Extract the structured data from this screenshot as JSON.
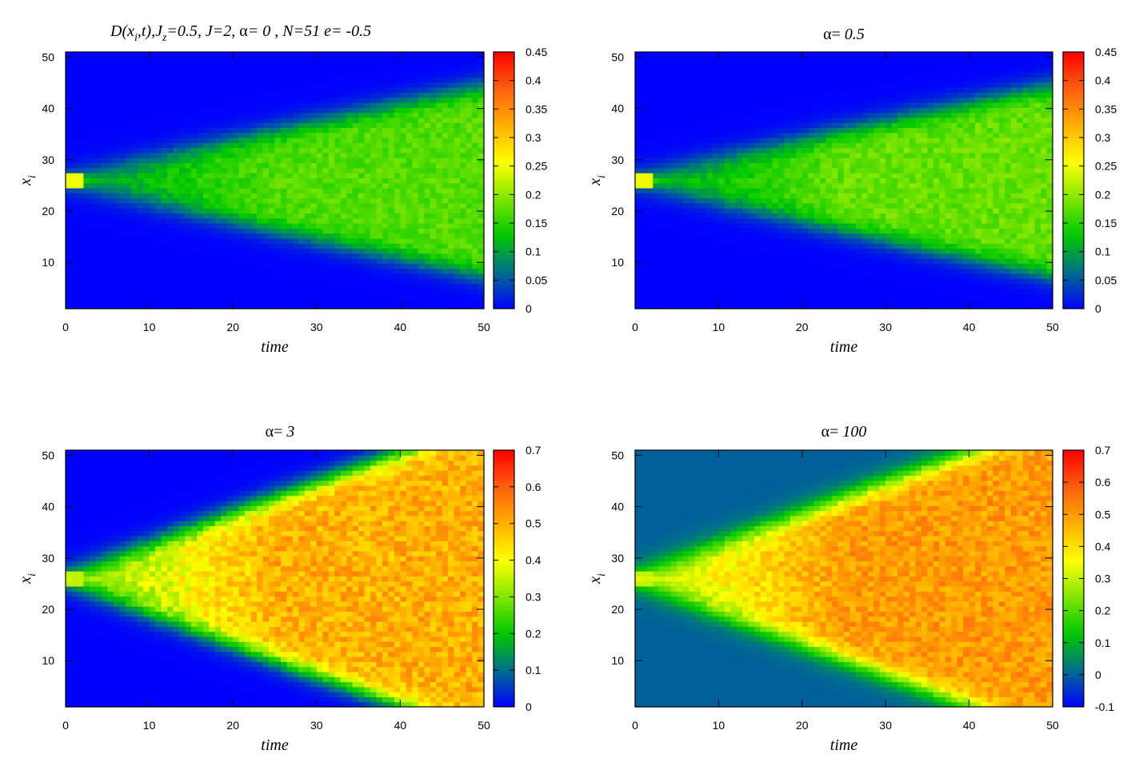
{
  "chart_data": [
    {
      "type": "heatmap",
      "title_parts": {
        "lead": "D(x",
        "sub_i": "i",
        "mid1": ",t),J",
        "sub_z": "z",
        "mid2": "=0.5,  J=2, ",
        "alpha": "α",
        "tail": "= 0 , N=51 e= -0.5"
      },
      "xlabel": "time",
      "ylabel_main": "x",
      "ylabel_sub": "i",
      "xlim": [
        0,
        50
      ],
      "ylim": [
        1,
        51
      ],
      "x_ticks": [
        "0",
        "10",
        "20",
        "30",
        "40",
        "50"
      ],
      "y_ticks": [
        "10",
        "20",
        "30",
        "40",
        "50"
      ],
      "colorbar": {
        "range": [
          0,
          0.45
        ],
        "ticks": [
          "0",
          "0.05",
          "0.1",
          "0.15",
          "0.2",
          "0.25",
          "0.3",
          "0.35",
          "0.4",
          "0.45"
        ]
      },
      "model": {
        "center": 26,
        "spread_rate": 0.36,
        "plateau_value": 0.17,
        "background_value": 0.0,
        "initial_peak": 0.25
      }
    },
    {
      "type": "heatmap",
      "title_parts": {
        "alpha": "α",
        "eq": "= ",
        "value": "0.5"
      },
      "xlabel": "time",
      "ylabel_main": "x",
      "ylabel_sub": "i",
      "xlim": [
        0,
        50
      ],
      "ylim": [
        1,
        51
      ],
      "x_ticks": [
        "0",
        "10",
        "20",
        "30",
        "40",
        "50"
      ],
      "y_ticks": [
        "10",
        "20",
        "30",
        "40",
        "50"
      ],
      "colorbar": {
        "range": [
          0,
          0.45
        ],
        "ticks": [
          "0",
          "0.05",
          "0.1",
          "0.15",
          "0.2",
          "0.25",
          "0.3",
          "0.35",
          "0.4",
          "0.45"
        ]
      },
      "model": {
        "center": 26,
        "spread_rate": 0.36,
        "plateau_value": 0.18,
        "background_value": 0.0,
        "initial_peak": 0.25
      }
    },
    {
      "type": "heatmap",
      "title_parts": {
        "alpha": "α",
        "eq": "= ",
        "value": "3"
      },
      "xlabel": "time",
      "ylabel_main": "x",
      "ylabel_sub": "i",
      "xlim": [
        0,
        50
      ],
      "ylim": [
        1,
        51
      ],
      "x_ticks": [
        "0",
        "10",
        "20",
        "30",
        "40",
        "50"
      ],
      "y_ticks": [
        "10",
        "20",
        "30",
        "40",
        "50"
      ],
      "colorbar": {
        "range": [
          0,
          0.7
        ],
        "ticks": [
          "0",
          "0.1",
          "0.2",
          "0.3",
          "0.4",
          "0.5",
          "0.6",
          "0.7"
        ]
      },
      "model": {
        "center": 26,
        "spread_rate": 0.6,
        "plateau_value": 0.5,
        "background_value": 0.0,
        "initial_peak": 0.35
      }
    },
    {
      "type": "heatmap",
      "title_parts": {
        "alpha": "α",
        "eq": "= ",
        "value": "100"
      },
      "xlabel": "time",
      "ylabel_main": "x",
      "ylabel_sub": "i",
      "xlim": [
        0,
        50
      ],
      "ylim": [
        1,
        51
      ],
      "x_ticks": [
        "0",
        "10",
        "20",
        "30",
        "40",
        "50"
      ],
      "y_ticks": [
        "10",
        "20",
        "30",
        "40",
        "50"
      ],
      "colorbar": {
        "range": [
          -0.1,
          0.7
        ],
        "ticks": [
          "-0.1",
          "0",
          "0.1",
          "0.2",
          "0.3",
          "0.4",
          "0.5",
          "0.6",
          "0.7"
        ]
      },
      "model": {
        "center": 26,
        "spread_rate": 0.6,
        "plateau_value": 0.5,
        "background_value": 0.0,
        "initial_peak": 0.3
      }
    }
  ],
  "colors": {
    "scale_stops": [
      "#0000ff",
      "#006e8c",
      "#00c800",
      "#80e600",
      "#ffff00",
      "#ffb000",
      "#ff6010",
      "#ff0000"
    ]
  }
}
